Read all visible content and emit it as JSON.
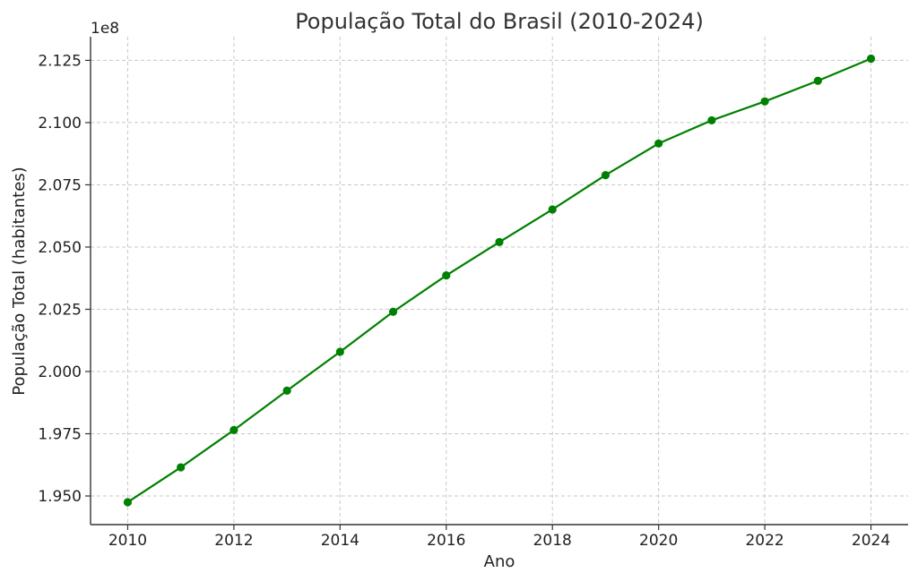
{
  "chart_data": {
    "type": "line",
    "title": "População Total do Brasil (2010-2024)",
    "xlabel": "Ano",
    "ylabel": "População Total (habitantes)",
    "y_offset_label": "1e8",
    "xlim": [
      2009.3,
      2024.7
    ],
    "ylim": [
      1.9385,
      2.1345
    ],
    "x_ticks": [
      2010,
      2012,
      2014,
      2016,
      2018,
      2020,
      2022,
      2024
    ],
    "x_tick_labels": [
      "2010",
      "2012",
      "2014",
      "2016",
      "2018",
      "2020",
      "2022",
      "2024"
    ],
    "y_ticks": [
      1.95,
      1.975,
      2.0,
      2.025,
      2.05,
      2.075,
      2.1,
      2.125
    ],
    "y_tick_labels": [
      "1.950",
      "1.975",
      "2.000",
      "2.025",
      "2.050",
      "2.075",
      "2.100",
      "2.125"
    ],
    "grid": true,
    "legend": "none",
    "series": [
      {
        "color": "#008000",
        "marker": "circle",
        "x": [
          2010,
          2011,
          2012,
          2013,
          2014,
          2015,
          2016,
          2017,
          2018,
          2019,
          2020,
          2021,
          2022,
          2023,
          2024
        ],
        "y": [
          1.9475,
          1.9615,
          1.9765,
          1.9923,
          2.0079,
          2.024,
          2.0386,
          2.052,
          2.0651,
          2.0789,
          2.0916,
          2.1009,
          2.1085,
          2.1168,
          2.1257
        ]
      }
    ]
  }
}
